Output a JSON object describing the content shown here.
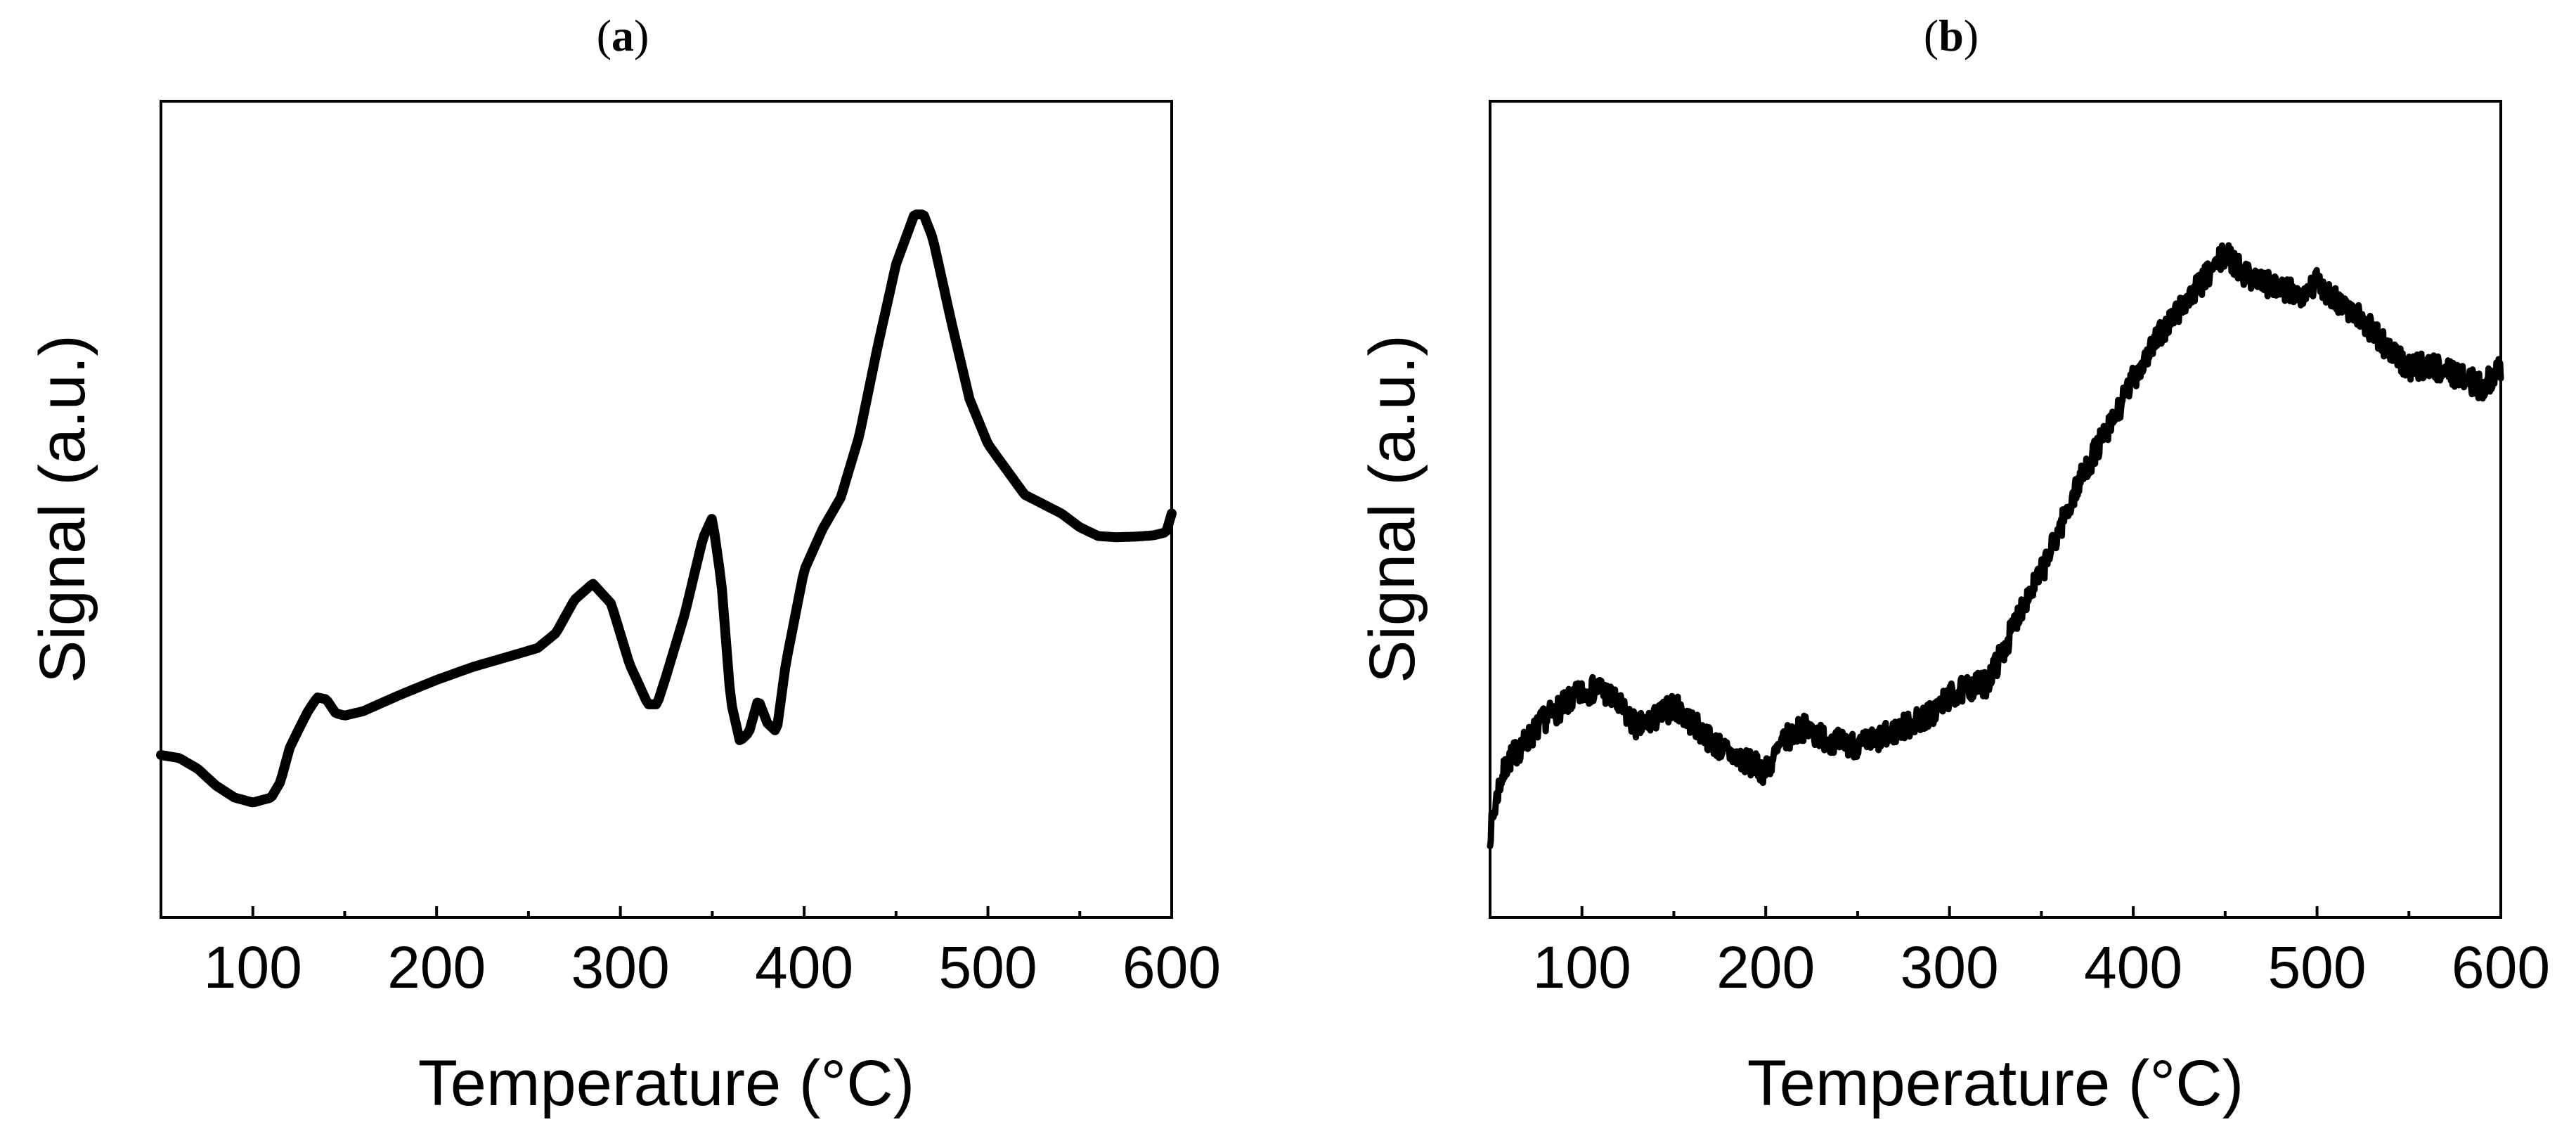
{
  "chart_data": [
    {
      "type": "line",
      "panel_label": {
        "open": "(",
        "letter": "a",
        "close": ")"
      },
      "xlabel": "Temperature (°C)",
      "ylabel": "Signal (a.u.)",
      "xlim": [
        50,
        600
      ],
      "ylim": [
        0,
        1
      ],
      "xticks": [
        100,
        200,
        300,
        400,
        500,
        600
      ],
      "yticks_shown": false,
      "grid": false,
      "legend": "none",
      "line_color": "#000000",
      "series": [
        {
          "noise": 0,
          "x": [
            50,
            60,
            70,
            80,
            90,
            100,
            110,
            115,
            120,
            125,
            130,
            135,
            140,
            145,
            150,
            160,
            180,
            200,
            220,
            240,
            255,
            265,
            275,
            285,
            295,
            305,
            315,
            320,
            325,
            335,
            345,
            350,
            355,
            360,
            365,
            370,
            375,
            380,
            385,
            390,
            400,
            410,
            420,
            430,
            440,
            450,
            460,
            465,
            470,
            480,
            490,
            500,
            520,
            540,
            550,
            560,
            570,
            580,
            590,
            597,
            600
          ],
          "y": [
            0.136,
            0.131,
            0.114,
            0.087,
            0.068,
            0.06,
            0.068,
            0.093,
            0.147,
            0.177,
            0.206,
            0.228,
            0.225,
            0.203,
            0.199,
            0.206,
            0.232,
            0.256,
            0.277,
            0.294,
            0.307,
            0.331,
            0.384,
            0.41,
            0.378,
            0.281,
            0.217,
            0.217,
            0.263,
            0.361,
            0.483,
            0.515,
            0.411,
            0.223,
            0.158,
            0.172,
            0.225,
            0.187,
            0.173,
            0.282,
            0.431,
            0.497,
            0.548,
            0.646,
            0.789,
            0.92,
            1.0,
            1.0,
            0.962,
            0.83,
            0.705,
            0.633,
            0.552,
            0.522,
            0.5,
            0.486,
            0.484,
            0.485,
            0.487,
            0.492,
            0.522
          ]
        }
      ]
    },
    {
      "type": "line",
      "panel_label": {
        "open": "(",
        "letter": "b",
        "close": ")"
      },
      "xlabel": "Temperature (°C)",
      "ylabel": "Signal (a.u.)",
      "xlim": [
        50,
        600
      ],
      "ylim": [
        0,
        1
      ],
      "xticks": [
        100,
        200,
        300,
        400,
        500,
        600
      ],
      "yticks_shown": false,
      "grid": false,
      "legend": "none",
      "line_color": "#000000",
      "series": [
        {
          "noise": 0.022,
          "x": [
            50,
            55,
            60,
            70,
            80,
            90,
            100,
            110,
            120,
            130,
            140,
            150,
            160,
            170,
            180,
            190,
            200,
            210,
            220,
            230,
            240,
            250,
            260,
            270,
            280,
            290,
            300,
            310,
            320,
            330,
            340,
            350,
            360,
            370,
            380,
            390,
            400,
            410,
            420,
            430,
            440,
            450,
            460,
            470,
            480,
            490,
            500,
            510,
            520,
            530,
            540,
            550,
            560,
            570,
            580,
            590,
            600
          ],
          "y": [
            0.022,
            0.104,
            0.145,
            0.179,
            0.216,
            0.238,
            0.26,
            0.268,
            0.238,
            0.201,
            0.216,
            0.238,
            0.209,
            0.179,
            0.157,
            0.142,
            0.127,
            0.179,
            0.201,
            0.186,
            0.175,
            0.171,
            0.179,
            0.194,
            0.209,
            0.223,
            0.253,
            0.268,
            0.275,
            0.335,
            0.41,
            0.462,
            0.537,
            0.611,
            0.671,
            0.723,
            0.791,
            0.843,
            0.888,
            0.925,
            0.963,
            1.0,
            0.97,
            0.955,
            0.94,
            0.933,
            0.955,
            0.925,
            0.903,
            0.873,
            0.836,
            0.806,
            0.813,
            0.806,
            0.791,
            0.776,
            0.806
          ]
        }
      ]
    }
  ]
}
